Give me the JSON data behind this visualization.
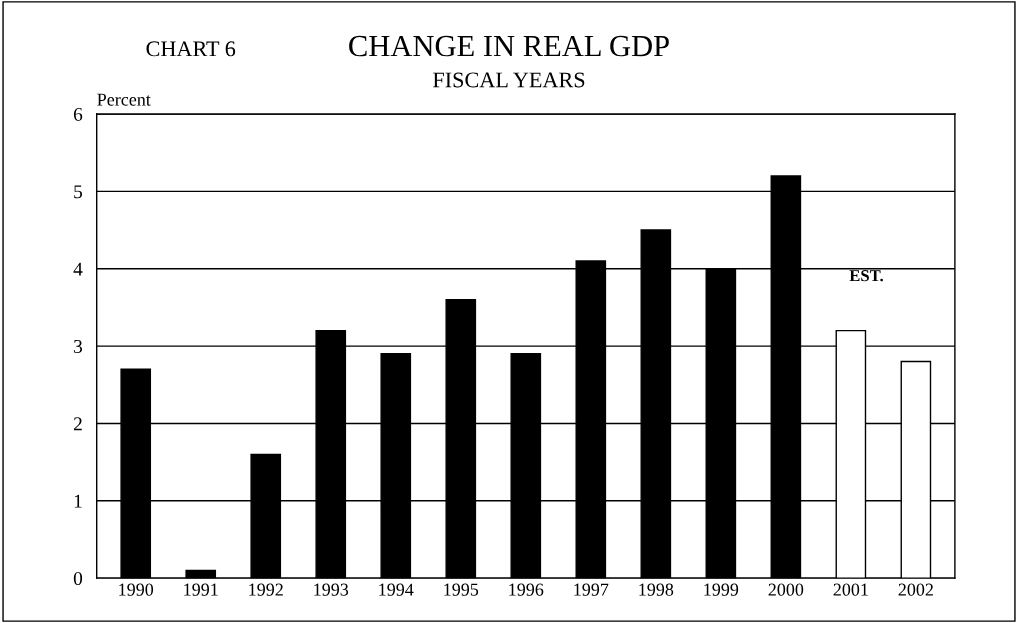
{
  "chart_data": {
    "type": "bar",
    "title": "CHANGE IN REAL GDP",
    "subtitle": "FISCAL YEARS",
    "ylabel": "Percent",
    "annotations": [
      "CHART 6",
      "EST."
    ],
    "categories": [
      "1990",
      "1991",
      "1992",
      "1993",
      "1994",
      "1995",
      "1996",
      "1997",
      "1998",
      "1999",
      "2000",
      "2001",
      "2002"
    ],
    "values": [
      2.7,
      0.1,
      1.6,
      3.2,
      2.9,
      3.6,
      2.9,
      4.1,
      4.5,
      4.0,
      5.2,
      3.2,
      2.8
    ],
    "colors": [
      "#000000",
      "#000000",
      "#000000",
      "#000000",
      "#000000",
      "#000000",
      "#000000",
      "#000000",
      "#000000",
      "#000000",
      "#000000",
      "#ffffff",
      "#ffffff"
    ],
    "ylim": [
      0,
      6
    ],
    "yticks": [
      0,
      1,
      2,
      3,
      4,
      5,
      6
    ],
    "grid": "y",
    "legend": false
  }
}
